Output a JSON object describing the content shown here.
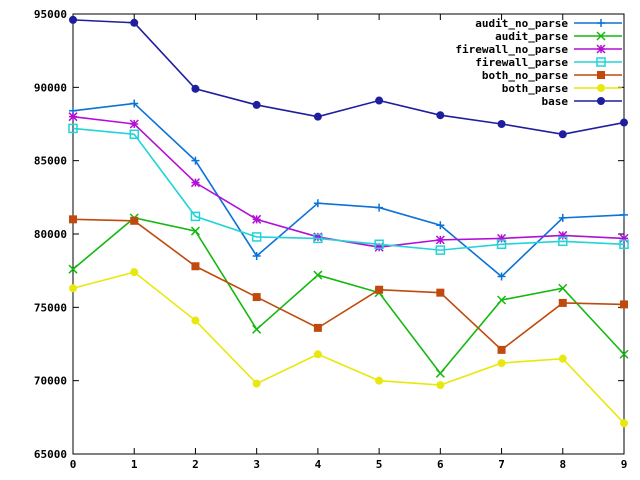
{
  "chart_data": {
    "type": "line",
    "title": "",
    "xlabel": "",
    "ylabel": "",
    "x": [
      0,
      1,
      2,
      3,
      4,
      5,
      6,
      7,
      8,
      9
    ],
    "xlim": [
      0,
      9
    ],
    "ylim": [
      65000,
      95000
    ],
    "xticks": [
      0,
      1,
      2,
      3,
      4,
      5,
      6,
      7,
      8,
      9
    ],
    "yticks": [
      65000,
      70000,
      75000,
      80000,
      85000,
      90000,
      95000
    ],
    "grid": false,
    "legend_position": "top-right",
    "series": [
      {
        "name": "audit_no_parse",
        "color": "#0b72d6",
        "marker": "plus",
        "values": [
          88400,
          88900,
          85000,
          78500,
          82100,
          81800,
          80600,
          77100,
          81100,
          81300
        ]
      },
      {
        "name": "audit_parse",
        "color": "#14b80e",
        "marker": "cross",
        "values": [
          77600,
          81100,
          80200,
          73500,
          77200,
          76000,
          70500,
          75500,
          76300,
          71800
        ]
      },
      {
        "name": "firewall_no_parse",
        "color": "#b30ed6",
        "marker": "asterisk",
        "values": [
          88000,
          87500,
          83500,
          81000,
          79800,
          79100,
          79600,
          79700,
          79900,
          79700
        ]
      },
      {
        "name": "firewall_parse",
        "color": "#22d4d8",
        "marker": "square-open",
        "values": [
          87200,
          86800,
          81200,
          79800,
          79700,
          79300,
          78900,
          79300,
          79500,
          79300
        ]
      },
      {
        "name": "both_no_parse",
        "color": "#c04a0e",
        "marker": "square-filled",
        "values": [
          81000,
          80900,
          77800,
          75700,
          73600,
          76200,
          76000,
          72100,
          75300,
          75200
        ]
      },
      {
        "name": "both_parse",
        "color": "#e8e80e",
        "marker": "circle-filled",
        "values": [
          76300,
          77400,
          74100,
          69800,
          71800,
          70000,
          69700,
          71200,
          71500,
          67100
        ]
      },
      {
        "name": "base",
        "color": "#1e1e9e",
        "marker": "circle-filled",
        "values": [
          94600,
          94400,
          89900,
          88800,
          88000,
          89100,
          88100,
          87500,
          86800,
          87600
        ]
      }
    ]
  }
}
